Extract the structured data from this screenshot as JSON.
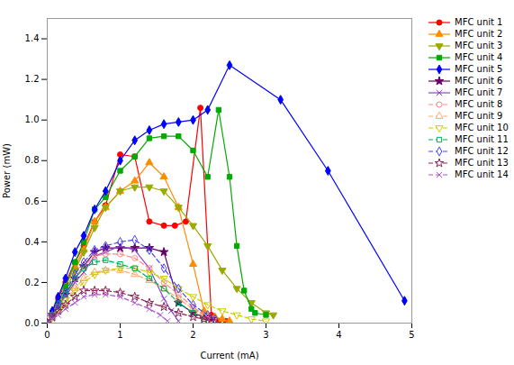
{
  "chart_data": {
    "type": "line",
    "xlabel": "Current (mA)",
    "ylabel": "Power (mW)",
    "xlim": [
      0,
      5
    ],
    "ylim": [
      0,
      1.5
    ],
    "xticks": [
      0,
      1,
      2,
      3,
      4,
      5
    ],
    "yticks": [
      {
        "value": 0,
        "label": "0.0"
      },
      0.2,
      0.4,
      0.6,
      0.8,
      {
        "value": 1,
        "label": "1.0"
      },
      1.2,
      1.4
    ],
    "legend": "right",
    "series": [
      {
        "name": "MFC unit 1",
        "color": "#ff0000",
        "line_style": "solid",
        "marker": "circle",
        "x": [
          0.0,
          0.07,
          0.15,
          0.25,
          0.38,
          0.5,
          0.65,
          0.8,
          1.0,
          1.2,
          1.4,
          1.6,
          1.75,
          1.9,
          2.1,
          2.25,
          2.35,
          2.45
        ],
        "values": [
          0.0,
          0.05,
          0.12,
          0.2,
          0.3,
          0.38,
          0.5,
          0.58,
          0.83,
          0.82,
          0.5,
          0.48,
          0.48,
          0.5,
          1.06,
          0.04,
          0.01,
          0.01
        ]
      },
      {
        "name": "MFC unit 2",
        "color": "#ff8c00",
        "line_style": "solid",
        "marker": "triangle-up",
        "x": [
          0.0,
          0.07,
          0.15,
          0.25,
          0.38,
          0.5,
          0.65,
          0.8,
          1.0,
          1.2,
          1.4,
          1.6,
          1.8,
          2.0,
          2.15,
          2.3,
          2.4,
          2.5
        ],
        "values": [
          0.0,
          0.05,
          0.1,
          0.18,
          0.28,
          0.36,
          0.5,
          0.57,
          0.65,
          0.7,
          0.79,
          0.72,
          0.57,
          0.29,
          0.06,
          0.03,
          0.02,
          0.01
        ]
      },
      {
        "name": "MFC unit 3",
        "color": "#9aaa00",
        "line_style": "solid",
        "marker": "triangle-down",
        "x": [
          0.0,
          0.07,
          0.15,
          0.25,
          0.38,
          0.5,
          0.65,
          0.8,
          1.0,
          1.2,
          1.4,
          1.6,
          1.8,
          2.0,
          2.2,
          2.4,
          2.6,
          2.8,
          3.0,
          3.1
        ],
        "values": [
          0.0,
          0.04,
          0.09,
          0.16,
          0.26,
          0.35,
          0.47,
          0.57,
          0.65,
          0.67,
          0.67,
          0.65,
          0.57,
          0.48,
          0.38,
          0.26,
          0.17,
          0.1,
          0.05,
          0.04
        ]
      },
      {
        "name": "MFC unit 4",
        "color": "#00aa00",
        "line_style": "solid",
        "marker": "square",
        "x": [
          0.0,
          0.07,
          0.15,
          0.25,
          0.38,
          0.5,
          0.65,
          0.8,
          1.0,
          1.2,
          1.4,
          1.6,
          1.8,
          2.0,
          2.2,
          2.35,
          2.5,
          2.6,
          2.7,
          2.8,
          2.85,
          3.0
        ],
        "values": [
          0.0,
          0.05,
          0.1,
          0.18,
          0.3,
          0.4,
          0.56,
          0.62,
          0.75,
          0.82,
          0.91,
          0.92,
          0.92,
          0.85,
          0.72,
          1.05,
          0.72,
          0.38,
          0.16,
          0.07,
          0.05,
          0.04
        ]
      },
      {
        "name": "MFC unit 5",
        "color": "#0000ff",
        "line_style": "solid",
        "marker": "diamond",
        "x": [
          0.0,
          0.07,
          0.15,
          0.25,
          0.38,
          0.5,
          0.65,
          0.8,
          1.0,
          1.2,
          1.4,
          1.6,
          1.8,
          2.0,
          2.2,
          2.5,
          3.2,
          3.85,
          4.9
        ],
        "values": [
          0.0,
          0.06,
          0.13,
          0.22,
          0.35,
          0.43,
          0.56,
          0.65,
          0.8,
          0.9,
          0.95,
          0.98,
          0.99,
          1.0,
          1.05,
          1.27,
          1.1,
          0.75,
          0.11
        ]
      },
      {
        "name": "MFC unit 6",
        "color": "#660066",
        "line_style": "solid",
        "marker": "star",
        "x": [
          0.0,
          0.07,
          0.15,
          0.25,
          0.38,
          0.5,
          0.65,
          0.8,
          1.0,
          1.2,
          1.4,
          1.6,
          1.8,
          2.0,
          2.15,
          2.25
        ],
        "values": [
          0.0,
          0.04,
          0.08,
          0.14,
          0.22,
          0.28,
          0.35,
          0.37,
          0.37,
          0.37,
          0.37,
          0.35,
          0.1,
          0.05,
          0.03,
          0.02
        ]
      },
      {
        "name": "MFC unit 7",
        "color": "#8844cc",
        "line_style": "solid",
        "marker": "x",
        "x": [
          0.0,
          0.07,
          0.15,
          0.25,
          0.38,
          0.5,
          0.65,
          0.8,
          1.0,
          1.2,
          1.4,
          1.6,
          1.7,
          1.8
        ],
        "values": [
          0.0,
          0.04,
          0.08,
          0.13,
          0.2,
          0.25,
          0.33,
          0.35,
          0.38,
          0.36,
          0.27,
          0.12,
          0.06,
          0.01
        ]
      },
      {
        "name": "MFC unit 8",
        "color": "#ff8888",
        "line_style": "dashed",
        "marker": "circle-open",
        "x": [
          0.0,
          0.07,
          0.15,
          0.25,
          0.38,
          0.5,
          0.65,
          0.8,
          1.0,
          1.2,
          1.4,
          1.6,
          1.8,
          2.0,
          2.15,
          2.25
        ],
        "values": [
          0.0,
          0.04,
          0.08,
          0.14,
          0.22,
          0.28,
          0.33,
          0.34,
          0.34,
          0.32,
          0.27,
          0.2,
          0.14,
          0.08,
          0.04,
          0.02
        ]
      },
      {
        "name": "MFC unit 9",
        "color": "#ffaa66",
        "line_style": "dashed",
        "marker": "triangle-up-open",
        "x": [
          0.0,
          0.07,
          0.15,
          0.25,
          0.38,
          0.5,
          0.65,
          0.8,
          1.0,
          1.2,
          1.4,
          1.6,
          1.8,
          2.0,
          2.15
        ],
        "values": [
          0.0,
          0.03,
          0.06,
          0.11,
          0.17,
          0.22,
          0.25,
          0.26,
          0.26,
          0.24,
          0.21,
          0.17,
          0.12,
          0.07,
          0.03
        ]
      },
      {
        "name": "MFC unit 10",
        "color": "#cccc00",
        "line_style": "dashed",
        "marker": "triangle-down-open",
        "x": [
          0.0,
          0.07,
          0.15,
          0.25,
          0.38,
          0.5,
          0.65,
          0.8,
          1.0,
          1.2,
          1.4,
          1.6,
          1.8,
          2.0,
          2.2,
          2.4,
          2.6,
          2.8,
          3.0
        ],
        "values": [
          0.0,
          0.03,
          0.06,
          0.1,
          0.16,
          0.2,
          0.24,
          0.26,
          0.27,
          0.27,
          0.25,
          0.22,
          0.17,
          0.13,
          0.09,
          0.06,
          0.04,
          0.02,
          0.01
        ]
      },
      {
        "name": "MFC unit 11",
        "color": "#00aa55",
        "line_style": "dashed",
        "marker": "square-open",
        "x": [
          0.0,
          0.07,
          0.15,
          0.25,
          0.38,
          0.5,
          0.65,
          0.8,
          1.0,
          1.2,
          1.4,
          1.6,
          1.8,
          2.0,
          2.15
        ],
        "values": [
          0.0,
          0.04,
          0.08,
          0.14,
          0.22,
          0.27,
          0.3,
          0.31,
          0.29,
          0.27,
          0.22,
          0.17,
          0.1,
          0.05,
          0.02
        ]
      },
      {
        "name": "MFC unit 12",
        "color": "#4444ff",
        "line_style": "dashed",
        "marker": "diamond-open",
        "x": [
          0.0,
          0.07,
          0.15,
          0.25,
          0.38,
          0.5,
          0.65,
          0.8,
          1.0,
          1.2,
          1.4,
          1.6,
          1.8,
          2.0,
          2.2,
          2.3
        ],
        "values": [
          0.0,
          0.04,
          0.09,
          0.15,
          0.24,
          0.3,
          0.36,
          0.38,
          0.4,
          0.41,
          0.36,
          0.27,
          0.17,
          0.09,
          0.04,
          0.02
        ]
      },
      {
        "name": "MFC unit 13",
        "color": "#882255",
        "line_style": "dashed",
        "marker": "star-open",
        "x": [
          0.0,
          0.07,
          0.15,
          0.25,
          0.38,
          0.5,
          0.65,
          0.8,
          1.0,
          1.2,
          1.4,
          1.6,
          1.8,
          2.0,
          2.15,
          2.25
        ],
        "values": [
          0.0,
          0.03,
          0.06,
          0.09,
          0.13,
          0.16,
          0.16,
          0.16,
          0.15,
          0.13,
          0.1,
          0.08,
          0.05,
          0.03,
          0.02,
          0.01
        ]
      },
      {
        "name": "MFC unit 14",
        "color": "#aa55cc",
        "line_style": "dashed",
        "marker": "x",
        "x": [
          0.0,
          0.07,
          0.15,
          0.25,
          0.38,
          0.5,
          0.65,
          0.8,
          1.0,
          1.2,
          1.4,
          1.55,
          1.65
        ],
        "values": [
          0.0,
          0.02,
          0.04,
          0.07,
          0.1,
          0.13,
          0.14,
          0.14,
          0.13,
          0.1,
          0.07,
          0.04,
          0.01
        ]
      }
    ]
  }
}
